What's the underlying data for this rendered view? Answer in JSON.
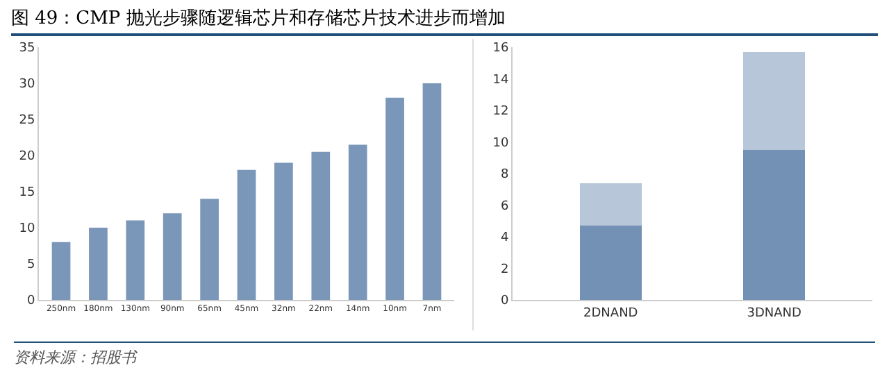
{
  "chart_data": [
    {
      "type": "bar",
      "title": "图 49：CMP 抛光步骤随逻辑芯片和存储芯片技术进步而增加",
      "categories": [
        "250nm",
        "180nm",
        "130nm",
        "90nm",
        "65nm",
        "45nm",
        "32nm",
        "22nm",
        "14nm",
        "10nm",
        "7nm"
      ],
      "values": [
        8,
        10,
        11,
        12,
        14,
        18,
        19,
        20.5,
        21.5,
        28,
        30
      ],
      "color": "#7a96b8",
      "ylim": [
        0,
        35
      ],
      "yticks": [
        0,
        5,
        10,
        15,
        20,
        25,
        30,
        35
      ],
      "grid": false,
      "annotations": [
        "资料来源：招股书"
      ]
    },
    {
      "type": "bar",
      "stacked": true,
      "categories": [
        "2DNAND",
        "3DNAND"
      ],
      "series": [
        {
          "color": "#7391b5",
          "values": [
            4.7,
            9.5
          ]
        },
        {
          "color": "#b7c6d8",
          "values": [
            2.7,
            6.2
          ]
        }
      ],
      "ylim": [
        0,
        16
      ],
      "yticks": [
        0,
        2,
        4,
        6,
        8,
        10,
        12,
        14,
        16
      ],
      "grid": false
    }
  ]
}
